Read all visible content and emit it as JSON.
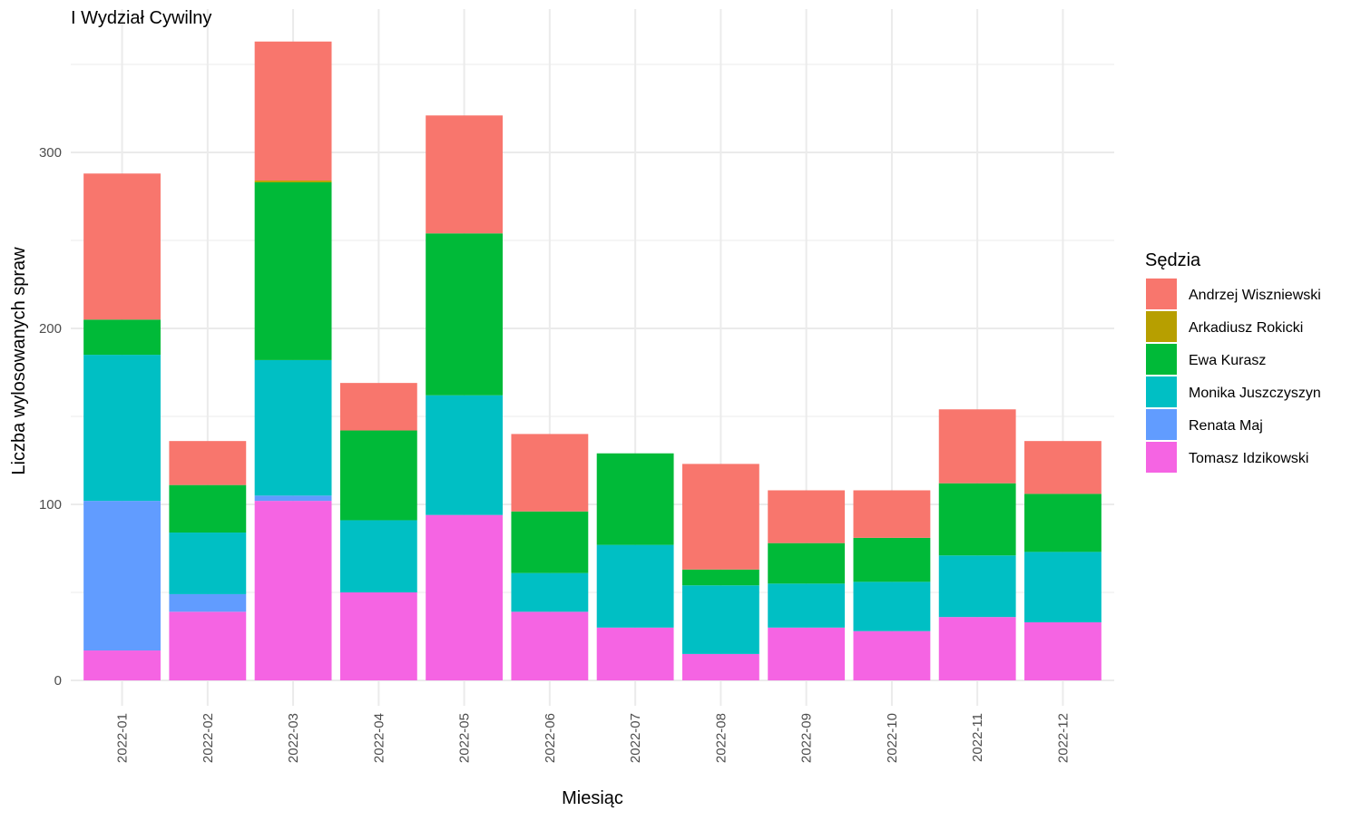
{
  "chart_data": {
    "type": "bar",
    "stacked": true,
    "title": "I Wydział Cywilny",
    "xlabel": "Miesiąc",
    "ylabel": "Liczba wylosowanych spraw",
    "categories": [
      "2022-01",
      "2022-02",
      "2022-03",
      "2022-04",
      "2022-05",
      "2022-06",
      "2022-07",
      "2022-08",
      "2022-09",
      "2022-10",
      "2022-11",
      "2022-12"
    ],
    "yticks": [
      0,
      100,
      200,
      300
    ],
    "ylim": [
      0,
      375
    ],
    "grid": true,
    "legend": {
      "title": "Sędzia",
      "position": "right"
    },
    "stack_order_bottom_to_top": [
      "Tomasz Idzikowski",
      "Renata Maj",
      "Monika Juszczyszyn",
      "Ewa Kurasz",
      "Arkadiusz Rokicki",
      "Andrzej Wiszniewski"
    ],
    "series": [
      {
        "name": "Andrzej Wiszniewski",
        "color": "#F8766D",
        "values": [
          83,
          25,
          79,
          27,
          67,
          44,
          0,
          60,
          30,
          27,
          42,
          30
        ]
      },
      {
        "name": "Arkadiusz Rokicki",
        "color": "#B79F00",
        "values": [
          0,
          0,
          1,
          0,
          0,
          0,
          0,
          0,
          0,
          0,
          0,
          0
        ]
      },
      {
        "name": "Ewa Kurasz",
        "color": "#00BA38",
        "values": [
          20,
          27,
          101,
          51,
          92,
          35,
          52,
          9,
          23,
          25,
          41,
          33
        ]
      },
      {
        "name": "Monika Juszczyszyn",
        "color": "#00BFC4",
        "values": [
          83,
          35,
          77,
          41,
          68,
          22,
          47,
          39,
          25,
          28,
          35,
          40
        ]
      },
      {
        "name": "Renata Maj",
        "color": "#619CFF",
        "values": [
          85,
          10,
          3,
          0,
          0,
          0,
          0,
          0,
          0,
          0,
          0,
          0
        ]
      },
      {
        "name": "Tomasz Idzikowski",
        "color": "#F564E3",
        "values": [
          17,
          39,
          102,
          50,
          94,
          39,
          30,
          15,
          30,
          28,
          36,
          33
        ]
      }
    ]
  }
}
